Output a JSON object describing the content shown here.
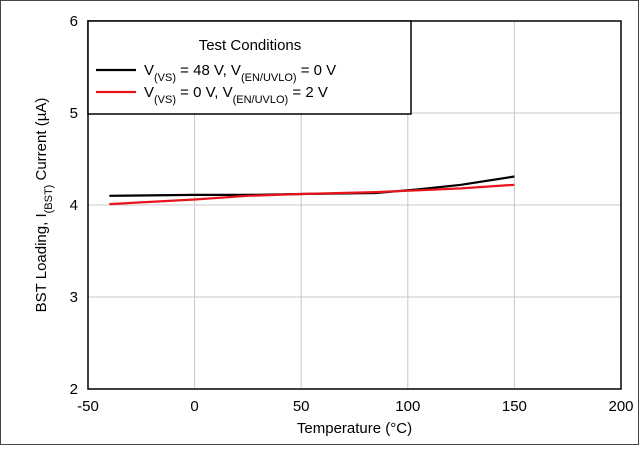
{
  "chart_data": {
    "type": "line",
    "title": "",
    "xlabel": "Temperature (°C)",
    "ylabel": {
      "parts": [
        {
          "text": "BST Loading, I"
        },
        {
          "text": "(BST)",
          "sub": true
        },
        {
          "text": " Current (µA)"
        }
      ]
    },
    "xlim": [
      -50,
      200
    ],
    "ylim": [
      2,
      6
    ],
    "xticks": [
      -50,
      0,
      50,
      100,
      150,
      200
    ],
    "yticks": [
      2,
      3,
      4,
      5,
      6
    ],
    "grid": true,
    "legend": {
      "placement": "top-left",
      "title": "Test Conditions"
    },
    "series": [
      {
        "label_parts": [
          {
            "text": "V"
          },
          {
            "text": "(VS)",
            "sub": true
          },
          {
            "text": " = 48 V, V"
          },
          {
            "text": "(EN/UVLO)",
            "sub": true
          },
          {
            "text": " = 0 V"
          }
        ],
        "color": "#000000",
        "x": [
          -40,
          0,
          25,
          50,
          85,
          105,
          125,
          150
        ],
        "y": [
          4.1,
          4.11,
          4.11,
          4.12,
          4.13,
          4.17,
          4.22,
          4.31
        ]
      },
      {
        "label_parts": [
          {
            "text": "V"
          },
          {
            "text": "(VS)",
            "sub": true
          },
          {
            "text": " = 0 V, V"
          },
          {
            "text": "(EN/UVLO)",
            "sub": true
          },
          {
            "text": " = 2 V"
          }
        ],
        "color": "#e8141c",
        "x": [
          -40,
          0,
          25,
          50,
          85,
          105,
          125,
          150
        ],
        "y": [
          4.01,
          4.06,
          4.1,
          4.12,
          4.14,
          4.16,
          4.18,
          4.22
        ]
      }
    ]
  }
}
